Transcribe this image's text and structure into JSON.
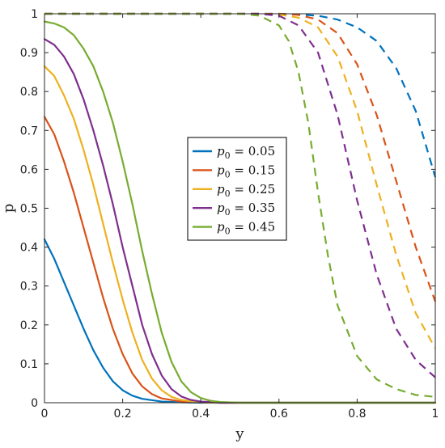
{
  "chart_data": {
    "type": "line",
    "xlabel": "y",
    "ylabel": "p",
    "xlim": [
      0,
      1
    ],
    "ylim": [
      0,
      1
    ],
    "xticks": [
      "0",
      "0.2",
      "0.4",
      "0.6",
      "0.8",
      "1"
    ],
    "yticks": [
      "0",
      "0.1",
      "0.2",
      "0.3",
      "0.4",
      "0.5",
      "0.6",
      "0.7",
      "0.8",
      "0.9",
      "1"
    ],
    "grid": false,
    "legend_position": "center",
    "legend_prefix": "p",
    "legend_subscript": "0",
    "legend_separator": " = ",
    "series": [
      {
        "name": "0.05",
        "color": "#0072BD",
        "solid": {
          "x": [
            0,
            0.025,
            0.05,
            0.075,
            0.1,
            0.125,
            0.15,
            0.175,
            0.2,
            0.225,
            0.25,
            0.3,
            0.35,
            0.4,
            0.45,
            0.5,
            0.6,
            0.8,
            1.0
          ],
          "y": [
            0.42,
            0.37,
            0.31,
            0.25,
            0.19,
            0.135,
            0.09,
            0.055,
            0.032,
            0.018,
            0.01,
            0.003,
            0.001,
            0.0,
            0,
            0,
            0,
            0,
            0
          ]
        },
        "dashed": {
          "x": [
            0,
            0.2,
            0.4,
            0.5,
            0.55,
            0.6,
            0.65,
            0.7,
            0.75,
            0.8,
            0.85,
            0.9,
            0.95,
            1.0
          ],
          "y": [
            1,
            1,
            1,
            1,
            1,
            1,
            0.998,
            0.995,
            0.985,
            0.965,
            0.93,
            0.86,
            0.75,
            0.58
          ]
        }
      },
      {
        "name": "0.15",
        "color": "#D95319",
        "solid": {
          "x": [
            0,
            0.025,
            0.05,
            0.075,
            0.1,
            0.125,
            0.15,
            0.175,
            0.2,
            0.225,
            0.25,
            0.275,
            0.3,
            0.35,
            0.4,
            0.45,
            0.5,
            0.6,
            0.8,
            1.0
          ],
          "y": [
            0.735,
            0.69,
            0.62,
            0.54,
            0.45,
            0.36,
            0.27,
            0.19,
            0.125,
            0.075,
            0.042,
            0.022,
            0.011,
            0.003,
            0.001,
            0,
            0,
            0,
            0,
            0
          ]
        },
        "dashed": {
          "x": [
            0,
            0.2,
            0.4,
            0.5,
            0.55,
            0.6,
            0.65,
            0.7,
            0.75,
            0.8,
            0.85,
            0.9,
            0.95,
            1.0
          ],
          "y": [
            1,
            1,
            1,
            1,
            1,
            1,
            0.997,
            0.985,
            0.95,
            0.87,
            0.74,
            0.57,
            0.4,
            0.26
          ]
        }
      },
      {
        "name": "0.25",
        "color": "#EDB120",
        "solid": {
          "x": [
            0,
            0.025,
            0.05,
            0.075,
            0.1,
            0.125,
            0.15,
            0.175,
            0.2,
            0.225,
            0.25,
            0.275,
            0.3,
            0.325,
            0.35,
            0.4,
            0.45,
            0.5,
            0.6,
            0.8,
            1.0
          ],
          "y": [
            0.865,
            0.84,
            0.79,
            0.73,
            0.65,
            0.56,
            0.46,
            0.36,
            0.265,
            0.18,
            0.11,
            0.062,
            0.032,
            0.015,
            0.007,
            0.001,
            0,
            0,
            0,
            0,
            0
          ]
        },
        "dashed": {
          "x": [
            0,
            0.2,
            0.4,
            0.5,
            0.55,
            0.6,
            0.65,
            0.7,
            0.75,
            0.8,
            0.85,
            0.9,
            0.95,
            1.0
          ],
          "y": [
            1,
            1,
            1,
            1,
            1,
            0.998,
            0.99,
            0.965,
            0.89,
            0.75,
            0.56,
            0.38,
            0.23,
            0.14
          ]
        }
      },
      {
        "name": "0.35",
        "color": "#7E2F8E",
        "solid": {
          "x": [
            0,
            0.025,
            0.05,
            0.075,
            0.1,
            0.125,
            0.15,
            0.175,
            0.2,
            0.225,
            0.25,
            0.275,
            0.3,
            0.325,
            0.35,
            0.375,
            0.4,
            0.45,
            0.5,
            0.6,
            0.8,
            1.0
          ],
          "y": [
            0.935,
            0.92,
            0.89,
            0.845,
            0.78,
            0.7,
            0.61,
            0.51,
            0.4,
            0.3,
            0.2,
            0.125,
            0.07,
            0.035,
            0.016,
            0.007,
            0.003,
            0.0,
            0,
            0,
            0,
            0
          ]
        },
        "dashed": {
          "x": [
            0,
            0.2,
            0.4,
            0.5,
            0.55,
            0.6,
            0.65,
            0.7,
            0.75,
            0.8,
            0.85,
            0.9,
            0.95,
            1.0
          ],
          "y": [
            1,
            1,
            1,
            1,
            1,
            0.995,
            0.97,
            0.9,
            0.74,
            0.52,
            0.33,
            0.19,
            0.11,
            0.065
          ]
        }
      },
      {
        "name": "0.45",
        "color": "#77AC30",
        "solid": {
          "x": [
            0,
            0.025,
            0.05,
            0.075,
            0.1,
            0.125,
            0.15,
            0.175,
            0.2,
            0.225,
            0.25,
            0.275,
            0.3,
            0.325,
            0.35,
            0.375,
            0.4,
            0.425,
            0.45,
            0.5,
            0.6,
            0.8,
            1.0
          ],
          "y": [
            0.98,
            0.975,
            0.965,
            0.945,
            0.91,
            0.865,
            0.8,
            0.72,
            0.62,
            0.51,
            0.39,
            0.28,
            0.18,
            0.105,
            0.055,
            0.027,
            0.012,
            0.005,
            0.002,
            0.0,
            0,
            0,
            0
          ]
        },
        "dashed": {
          "x": [
            0,
            0.2,
            0.4,
            0.5,
            0.55,
            0.6,
            0.625,
            0.65,
            0.675,
            0.7,
            0.725,
            0.75,
            0.8,
            0.85,
            0.9,
            0.95,
            1.0
          ],
          "y": [
            1,
            1,
            1,
            1,
            0.995,
            0.97,
            0.93,
            0.85,
            0.72,
            0.54,
            0.38,
            0.25,
            0.12,
            0.06,
            0.035,
            0.02,
            0.015
          ]
        }
      }
    ]
  }
}
